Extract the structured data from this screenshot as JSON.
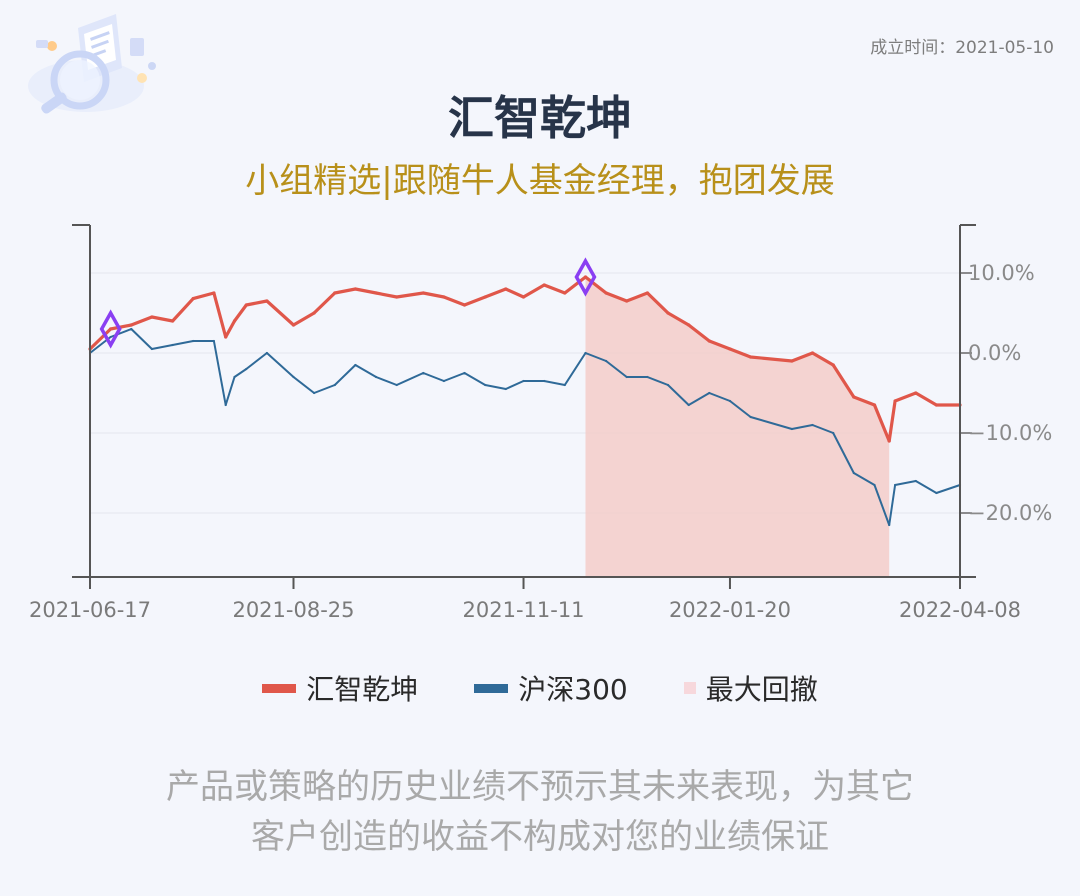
{
  "header": {
    "founded": "成立时间：2021-05-10",
    "title": "汇智乾坤",
    "subtitle": "小组精选|跟随牛人基金经理，抱团发展"
  },
  "colors": {
    "fund": "#e0574a",
    "index": "#2f6a98",
    "drawdown": "#f3cdc9",
    "marker": "#8a3ff2",
    "title": "#273449",
    "subtitle": "#b8901a"
  },
  "chart_data": {
    "type": "line",
    "x_ticks": [
      "2021-06-17",
      "2021-08-25",
      "2021-11-11",
      "2022-01-20",
      "2022-04-08"
    ],
    "y_ticks": [
      "10.0%",
      "0.0%",
      "-10.0%",
      "-20.0%"
    ],
    "y_tick_values": [
      10,
      0,
      -10,
      -20
    ],
    "ylim": [
      -28,
      16
    ],
    "x_range": [
      "2021-06-17",
      "2022-04-08"
    ],
    "grid": true,
    "legend_position": "bottom",
    "series": [
      {
        "name": "汇智乾坤",
        "color": "#e0574a",
        "x": [
          "2021-06-17",
          "2021-06-24",
          "2021-07-01",
          "2021-07-08",
          "2021-07-15",
          "2021-07-22",
          "2021-07-29",
          "2021-08-02",
          "2021-08-05",
          "2021-08-09",
          "2021-08-16",
          "2021-08-25",
          "2021-09-01",
          "2021-09-08",
          "2021-09-15",
          "2021-09-22",
          "2021-09-29",
          "2021-10-08",
          "2021-10-15",
          "2021-10-22",
          "2021-10-29",
          "2021-11-05",
          "2021-11-11",
          "2021-11-18",
          "2021-11-25",
          "2021-12-02",
          "2021-12-09",
          "2021-12-16",
          "2021-12-23",
          "2021-12-30",
          "2022-01-06",
          "2022-01-13",
          "2022-01-20",
          "2022-01-27",
          "2022-02-10",
          "2022-02-17",
          "2022-02-24",
          "2022-03-03",
          "2022-03-10",
          "2022-03-15",
          "2022-03-17",
          "2022-03-24",
          "2022-03-31",
          "2022-04-08"
        ],
        "values": [
          0.5,
          3.0,
          3.5,
          4.5,
          4.0,
          6.8,
          7.5,
          2.0,
          4.0,
          6.0,
          6.5,
          3.5,
          5.0,
          7.5,
          8.0,
          7.5,
          7.0,
          7.5,
          7.0,
          6.0,
          7.0,
          8.0,
          7.0,
          8.5,
          7.5,
          9.5,
          7.5,
          6.5,
          7.5,
          5.0,
          3.5,
          1.5,
          0.5,
          -0.5,
          -1.0,
          0.0,
          -1.5,
          -5.5,
          -6.5,
          -11.0,
          -6.0,
          -5.0,
          -6.5,
          -6.5
        ]
      },
      {
        "name": "沪深300",
        "color": "#2f6a98",
        "x": [
          "2021-06-17",
          "2021-06-24",
          "2021-07-01",
          "2021-07-08",
          "2021-07-15",
          "2021-07-22",
          "2021-07-29",
          "2021-08-02",
          "2021-08-05",
          "2021-08-09",
          "2021-08-16",
          "2021-08-25",
          "2021-09-01",
          "2021-09-08",
          "2021-09-15",
          "2021-09-22",
          "2021-09-29",
          "2021-10-08",
          "2021-10-15",
          "2021-10-22",
          "2021-10-29",
          "2021-11-05",
          "2021-11-11",
          "2021-11-18",
          "2021-11-25",
          "2021-12-02",
          "2021-12-09",
          "2021-12-16",
          "2021-12-23",
          "2021-12-30",
          "2022-01-06",
          "2022-01-13",
          "2022-01-20",
          "2022-01-27",
          "2022-02-10",
          "2022-02-17",
          "2022-02-24",
          "2022-03-03",
          "2022-03-10",
          "2022-03-15",
          "2022-03-17",
          "2022-03-24",
          "2022-03-31",
          "2022-04-08"
        ],
        "values": [
          0.0,
          2.0,
          3.0,
          0.5,
          1.0,
          1.5,
          1.5,
          -6.5,
          -3.0,
          -2.0,
          0.0,
          -3.0,
          -5.0,
          -4.0,
          -1.5,
          -3.0,
          -4.0,
          -2.5,
          -3.5,
          -2.5,
          -4.0,
          -4.5,
          -3.5,
          -3.5,
          -4.0,
          0.0,
          -1.0,
          -3.0,
          -3.0,
          -4.0,
          -6.5,
          -5.0,
          -6.0,
          -8.0,
          -9.5,
          -9.0,
          -10.0,
          -15.0,
          -16.5,
          -21.5,
          -16.5,
          -16.0,
          -17.5,
          -16.5
        ]
      }
    ],
    "drawdown": {
      "name": "最大回撤",
      "color": "#f3cdc9",
      "start": "2021-12-02",
      "end": "2022-03-15"
    },
    "markers": [
      {
        "date": "2021-06-24",
        "value": 3.0
      },
      {
        "date": "2021-12-02",
        "value": 9.5
      }
    ]
  },
  "legend": [
    {
      "label": "汇智乾坤",
      "color": "#e0574a"
    },
    {
      "label": "沪深300",
      "color": "#2f6a98"
    },
    {
      "label": "最大回撤",
      "color": "#f7d8dc"
    }
  ],
  "disclaimer": {
    "line1": "产品或策略的历史业绩不预示其未来表现，为其它",
    "line2": "客户创造的收益不构成对您的业绩保证"
  }
}
